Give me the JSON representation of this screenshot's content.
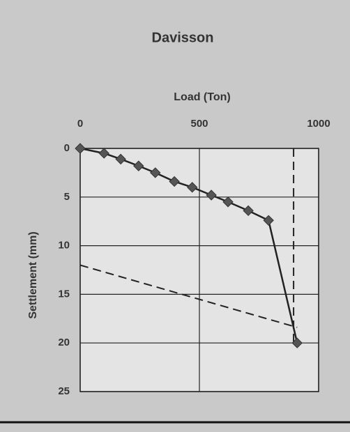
{
  "chart_data": {
    "type": "line",
    "title": "Davisson",
    "x_label": "Load (Ton)",
    "y_label": "Settlement (mm)",
    "x": [
      0,
      100,
      170,
      245,
      315,
      395,
      470,
      550,
      620,
      705,
      790,
      910
    ],
    "series": [
      {
        "color": "#555555",
        "values": [
          0,
          0.5,
          1.1,
          1.8,
          2.5,
          3.4,
          4.0,
          4.8,
          5.5,
          6.4,
          7.4,
          20
        ]
      }
    ],
    "reference_lines": [
      {
        "x": [
          0,
          910
        ],
        "y": [
          12,
          18.4
        ]
      },
      {
        "x": [
          895,
          895
        ],
        "y": [
          0,
          20
        ]
      }
    ],
    "xlim": [
      0,
      1000
    ],
    "xticks": [
      0,
      500,
      1000
    ],
    "x_axis_top": true,
    "ylim": [
      0,
      25
    ],
    "yticks": [
      0,
      5,
      10,
      15,
      20,
      25
    ],
    "y_inverted": true,
    "grid": true
  }
}
